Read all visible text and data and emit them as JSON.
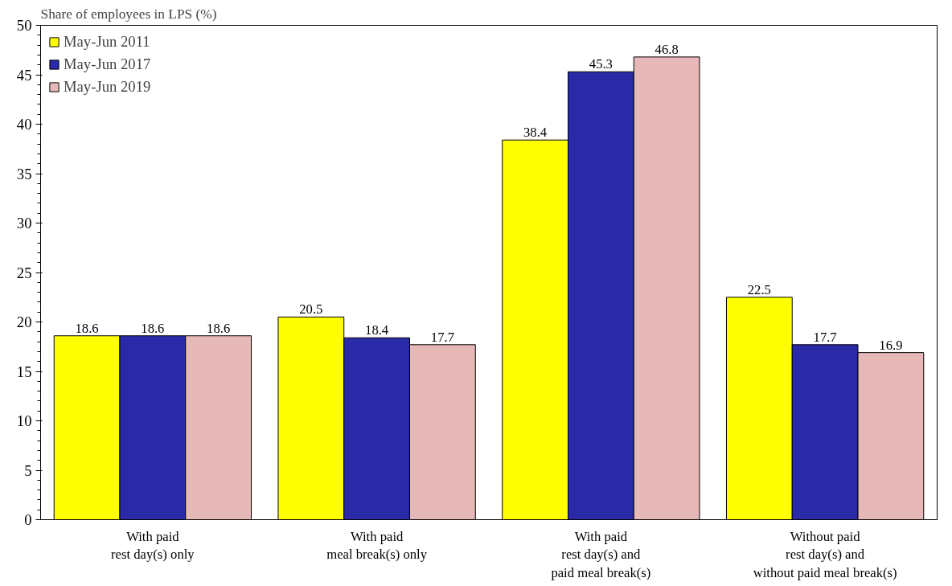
{
  "chart_data": {
    "type": "bar",
    "ylabel": "Share of employees in LPS (%)",
    "categories": [
      "With paid\nrest day(s) only",
      "With paid\nmeal break(s) only",
      "With paid\nrest day(s) and\npaid meal break(s)",
      "Without paid\nrest day(s) and\nwithout paid meal break(s)"
    ],
    "series": [
      {
        "name": "May-Jun 2011",
        "color": "#ffff00",
        "values": [
          18.6,
          20.5,
          38.4,
          22.5
        ]
      },
      {
        "name": "May-Jun 2017",
        "color": "#2a2aa8",
        "values": [
          18.6,
          18.4,
          45.3,
          17.7
        ]
      },
      {
        "name": "May-Jun 2019",
        "color": "#e6b8b7",
        "values": [
          18.6,
          17.7,
          46.8,
          16.9
        ]
      }
    ],
    "ylim": [
      0,
      50
    ],
    "yticks": [
      0,
      5,
      10,
      15,
      20,
      25,
      30,
      35,
      40,
      45,
      50
    ],
    "data_labels": true,
    "legend": "top left",
    "grid": false
  }
}
